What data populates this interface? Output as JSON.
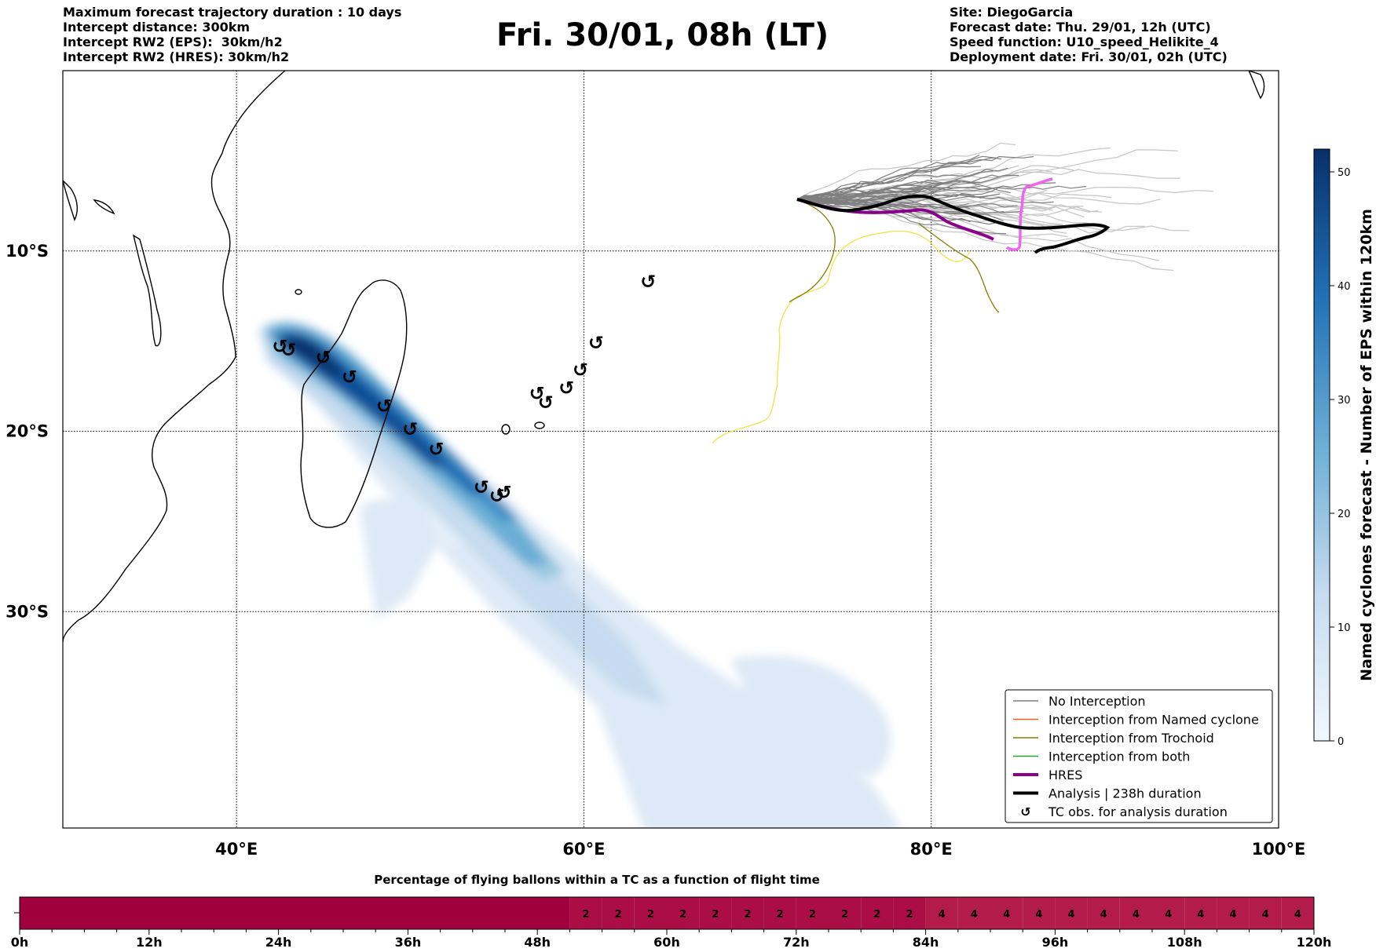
{
  "header": {
    "left_lines": [
      "Maximum forecast trajectory duration : 10 days",
      "Intercept distance: 300km",
      "Intercept RW2 (EPS):  30km/h2",
      "Intercept RW2 (HRES): 30km/h2"
    ],
    "title": "Fri. 30/01, 08h (LT)",
    "right_lines": [
      "Site: DiegoGarcia",
      "Forecast date: Thu. 29/01, 12h (UTC)",
      "Speed function: U10_speed_Helikite_4",
      "Deployment date: Fri. 30/01, 02h (UTC)"
    ]
  },
  "map": {
    "lon_range": [
      30,
      100
    ],
    "lat_range": [
      -42,
      0
    ],
    "lon_ticks": [
      {
        "value": 40,
        "label": "40°E"
      },
      {
        "value": 60,
        "label": "60°E"
      },
      {
        "value": 80,
        "label": "80°E"
      },
      {
        "value": 100,
        "label": "100°E"
      }
    ],
    "lat_ticks": [
      {
        "value": -10,
        "label": "10°S"
      },
      {
        "value": -20,
        "label": "20°S"
      },
      {
        "value": -30,
        "label": "30°S"
      }
    ],
    "tc_symbol": "↺",
    "tc_observations": [
      [
        -11.7,
        63.7
      ],
      [
        -15.1,
        60.7
      ],
      [
        -16.6,
        59.8
      ],
      [
        -17.6,
        59.0
      ],
      [
        -17.9,
        57.3
      ],
      [
        -18.4,
        57.8
      ],
      [
        -15.3,
        42.5
      ],
      [
        -15.5,
        43.0
      ],
      [
        -15.9,
        45.0
      ],
      [
        -17.0,
        46.5
      ],
      [
        -18.6,
        48.5
      ],
      [
        -19.9,
        50.0
      ],
      [
        -21.0,
        51.5
      ],
      [
        -23.1,
        54.1
      ],
      [
        -23.6,
        55.0
      ],
      [
        -23.4,
        55.4
      ]
    ],
    "colors": {
      "no_interception": "#7f7f7f",
      "named_cyclone": "#ff5b1e",
      "trochoid": "#808000",
      "both": "#2ca02c",
      "hres": "#8b008b",
      "analysis": "#000000",
      "ensemble_light": "#c8c8c8",
      "yellow_track": "#e8e84a",
      "magenta_track": "#ee66ee"
    }
  },
  "legend": [
    {
      "label": "No Interception",
      "icon": "thin-gray-line-icon",
      "color": "#7f7f7f"
    },
    {
      "label": "Interception from Named cyclone",
      "icon": "thin-orange-line-icon",
      "color": "#ff5b1e"
    },
    {
      "label": "Interception from Trochoid",
      "icon": "thin-olive-line-icon",
      "color": "#808000"
    },
    {
      "label": "Interception from both",
      "icon": "thin-green-line-icon",
      "color": "#2ca02c"
    },
    {
      "label": "HRES",
      "icon": "thick-purple-line-icon",
      "color": "#8b008b"
    },
    {
      "label": "Analysis | 238h duration",
      "icon": "thick-black-line-icon",
      "color": "#000000"
    },
    {
      "label": "TC obs. for analysis duration",
      "icon": "cyclone-symbol-icon",
      "color": "#000000"
    }
  ],
  "colorbar": {
    "title": "Named cyclones forecast - Number of EPS within 120km",
    "min": 0,
    "max": 52,
    "ticks": [
      "0",
      "10",
      "20",
      "30",
      "40",
      "50"
    ],
    "tick_values": [
      0,
      10,
      20,
      30,
      40,
      50
    ],
    "color_low": "#f2f7fd",
    "color_high": "#08306b"
  },
  "flight_bar": {
    "title": "Percentage of flying ballons within a TC as a function of flight time",
    "ticks": [
      "0h",
      "12h",
      "24h",
      "36h",
      "48h",
      "60h",
      "72h",
      "84h",
      "96h",
      "108h",
      "120h"
    ],
    "cell_hours": 3,
    "cells": [
      {
        "from_h": 0,
        "to_h": 51,
        "value": ""
      },
      {
        "from_h": 51,
        "to_h": 54,
        "value": "2"
      },
      {
        "from_h": 54,
        "to_h": 57,
        "value": "2"
      },
      {
        "from_h": 57,
        "to_h": 60,
        "value": "2"
      },
      {
        "from_h": 60,
        "to_h": 63,
        "value": "2"
      },
      {
        "from_h": 63,
        "to_h": 66,
        "value": "2"
      },
      {
        "from_h": 66,
        "to_h": 69,
        "value": "2"
      },
      {
        "from_h": 69,
        "to_h": 72,
        "value": "2"
      },
      {
        "from_h": 72,
        "to_h": 75,
        "value": "2"
      },
      {
        "from_h": 75,
        "to_h": 78,
        "value": "2"
      },
      {
        "from_h": 78,
        "to_h": 81,
        "value": "2"
      },
      {
        "from_h": 81,
        "to_h": 84,
        "value": "2"
      },
      {
        "from_h": 84,
        "to_h": 87,
        "value": "4"
      },
      {
        "from_h": 87,
        "to_h": 90,
        "value": "4"
      },
      {
        "from_h": 90,
        "to_h": 93,
        "value": "4"
      },
      {
        "from_h": 93,
        "to_h": 96,
        "value": "4"
      },
      {
        "from_h": 96,
        "to_h": 99,
        "value": "4"
      },
      {
        "from_h": 99,
        "to_h": 102,
        "value": "4"
      },
      {
        "from_h": 102,
        "to_h": 105,
        "value": "4"
      },
      {
        "from_h": 105,
        "to_h": 108,
        "value": "4"
      },
      {
        "from_h": 108,
        "to_h": 111,
        "value": "4"
      },
      {
        "from_h": 111,
        "to_h": 114,
        "value": "4"
      },
      {
        "from_h": 114,
        "to_h": 117,
        "value": "4"
      },
      {
        "from_h": 117,
        "to_h": 120,
        "value": "4"
      }
    ],
    "color_zero": "#a0003d",
    "color_two": "#aa0e45",
    "color_four": "#b41b4d"
  }
}
